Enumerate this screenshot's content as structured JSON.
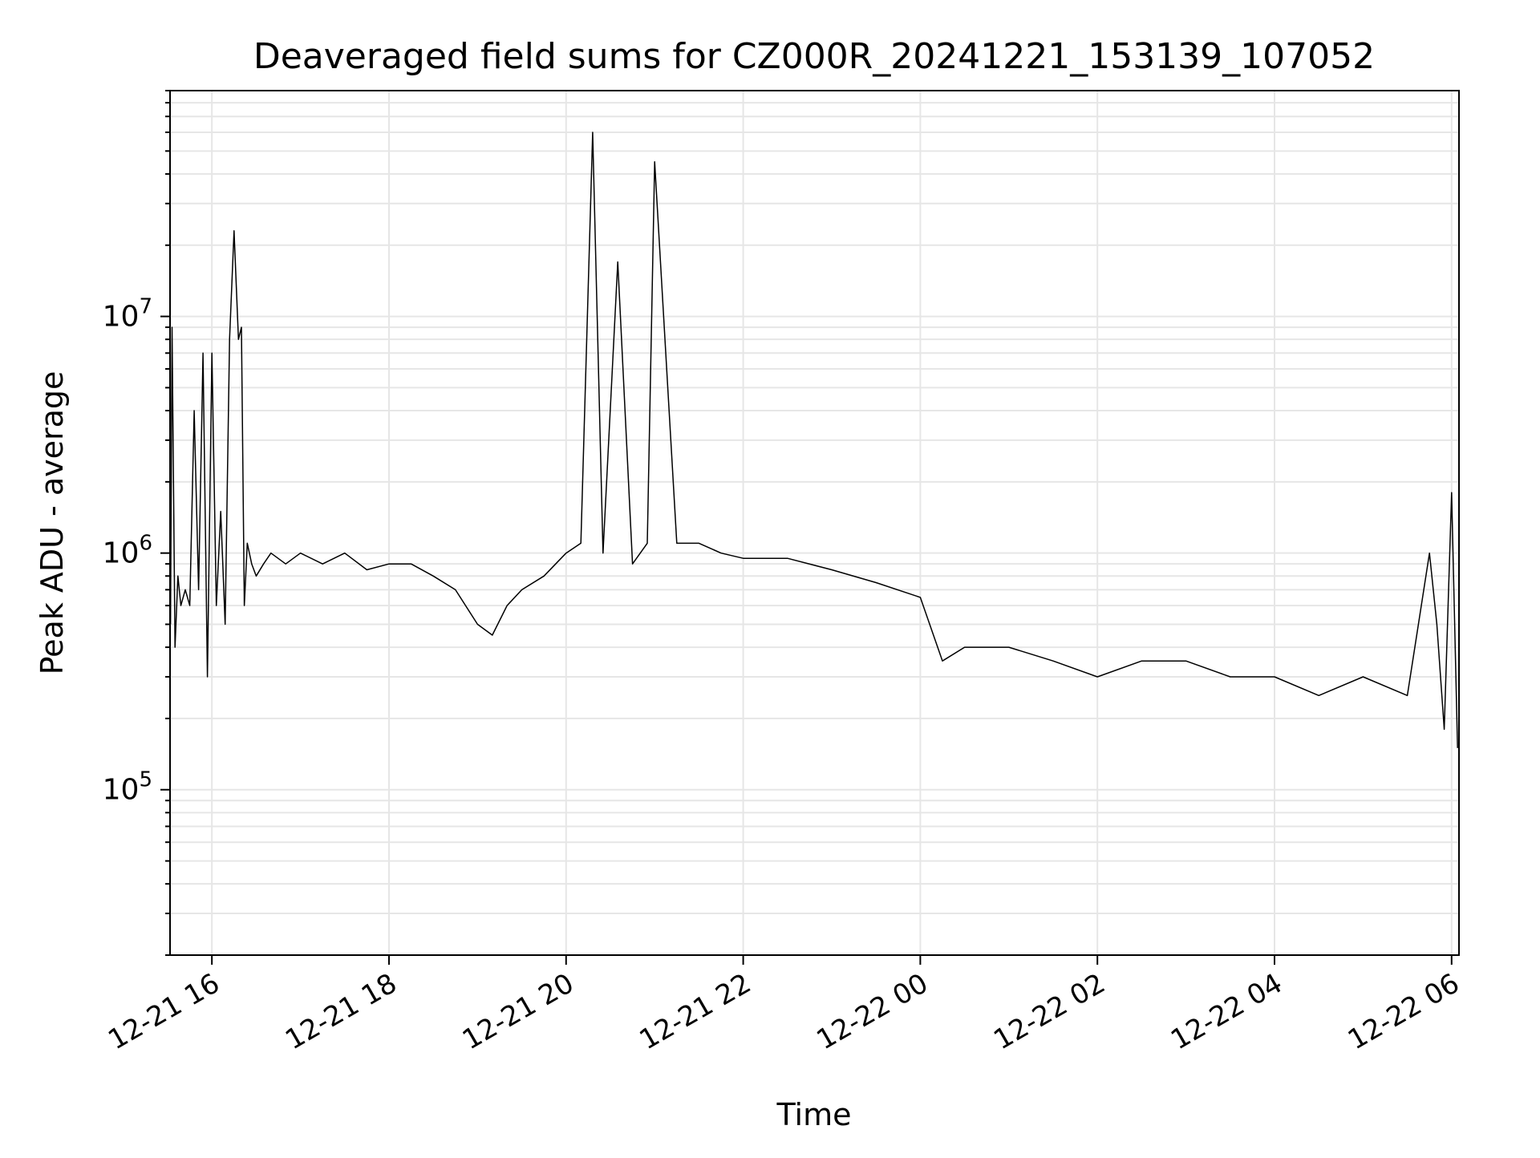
{
  "chart_data": {
    "type": "line",
    "title": "Deaveraged field sums for CZ000R_20241221_153139_107052",
    "xlabel": "Time",
    "ylabel": "Peak ADU - average",
    "x_range": [
      "2024-12-21 15:31:39",
      "2024-12-22 06:05:00"
    ],
    "y_scale": "log",
    "ylim": [
      20000,
      90000000
    ],
    "x_tick_labels": [
      "12-21 16",
      "12-21 18",
      "12-21 20",
      "12-21 22",
      "12-22 00",
      "12-22 02",
      "12-22 04",
      "12-22 06"
    ],
    "x_ticks": [
      "2024-12-21 16:00",
      "2024-12-21 18:00",
      "2024-12-21 20:00",
      "2024-12-21 22:00",
      "2024-12-22 00:00",
      "2024-12-22 02:00",
      "2024-12-22 04:00",
      "2024-12-22 06:00"
    ],
    "y_ticks": [
      {
        "value": 100000,
        "base": "10",
        "exp": "5"
      },
      {
        "value": 1000000,
        "base": "10",
        "exp": "6"
      },
      {
        "value": 10000000,
        "base": "10",
        "exp": "7"
      }
    ],
    "grid": true,
    "line_color": "#000000",
    "grid_color": "#e6e6e6",
    "series": [
      {
        "x": [
          "2024-12-21 15:32",
          "2024-12-21 15:33",
          "2024-12-21 15:35",
          "2024-12-21 15:37",
          "2024-12-21 15:39",
          "2024-12-21 15:42",
          "2024-12-21 15:45",
          "2024-12-21 15:48",
          "2024-12-21 15:51",
          "2024-12-21 15:54",
          "2024-12-21 15:57",
          "2024-12-21 16:00",
          "2024-12-21 16:03",
          "2024-12-21 16:06",
          "2024-12-21 16:09",
          "2024-12-21 16:12",
          "2024-12-21 16:15",
          "2024-12-21 16:18",
          "2024-12-21 16:20",
          "2024-12-21 16:22",
          "2024-12-21 16:24",
          "2024-12-21 16:27",
          "2024-12-21 16:30",
          "2024-12-21 16:35",
          "2024-12-21 16:40",
          "2024-12-21 16:50",
          "2024-12-21 17:00",
          "2024-12-21 17:15",
          "2024-12-21 17:30",
          "2024-12-21 17:45",
          "2024-12-21 18:00",
          "2024-12-21 18:15",
          "2024-12-21 18:30",
          "2024-12-21 18:45",
          "2024-12-21 19:00",
          "2024-12-21 19:10",
          "2024-12-21 19:20",
          "2024-12-21 19:30",
          "2024-12-21 19:45",
          "2024-12-21 20:00",
          "2024-12-21 20:10",
          "2024-12-21 20:18",
          "2024-12-21 20:25",
          "2024-12-21 20:35",
          "2024-12-21 20:45",
          "2024-12-21 20:55",
          "2024-12-21 21:00",
          "2024-12-21 21:15",
          "2024-12-21 21:30",
          "2024-12-21 21:45",
          "2024-12-21 22:00",
          "2024-12-21 22:30",
          "2024-12-21 23:00",
          "2024-12-21 23:30",
          "2024-12-22 00:00",
          "2024-12-22 00:15",
          "2024-12-22 00:30",
          "2024-12-22 01:00",
          "2024-12-22 01:30",
          "2024-12-22 02:00",
          "2024-12-22 02:30",
          "2024-12-22 03:00",
          "2024-12-22 03:30",
          "2024-12-22 04:00",
          "2024-12-22 04:30",
          "2024-12-22 05:00",
          "2024-12-22 05:30",
          "2024-12-22 05:45",
          "2024-12-22 05:50",
          "2024-12-22 05:55",
          "2024-12-22 06:00",
          "2024-12-22 06:04"
        ],
        "y": [
          500000,
          9000000,
          400000,
          800000,
          600000,
          700000,
          600000,
          4000000,
          700000,
          7000000,
          300000,
          7000000,
          600000,
          1500000,
          500000,
          8000000,
          23000000,
          8000000,
          9000000,
          600000,
          1100000,
          900000,
          800000,
          900000,
          1000000,
          900000,
          1000000,
          900000,
          1000000,
          850000,
          900000,
          900000,
          800000,
          700000,
          500000,
          450000,
          600000,
          700000,
          800000,
          1000000,
          1100000,
          60000000,
          1000000,
          17000000,
          900000,
          1100000,
          45000000,
          1100000,
          1100000,
          1000000,
          950000,
          950000,
          850000,
          750000,
          650000,
          350000,
          400000,
          400000,
          350000,
          300000,
          350000,
          350000,
          300000,
          300000,
          250000,
          300000,
          250000,
          1000000,
          500000,
          180000,
          1800000,
          150000
        ]
      }
    ]
  }
}
